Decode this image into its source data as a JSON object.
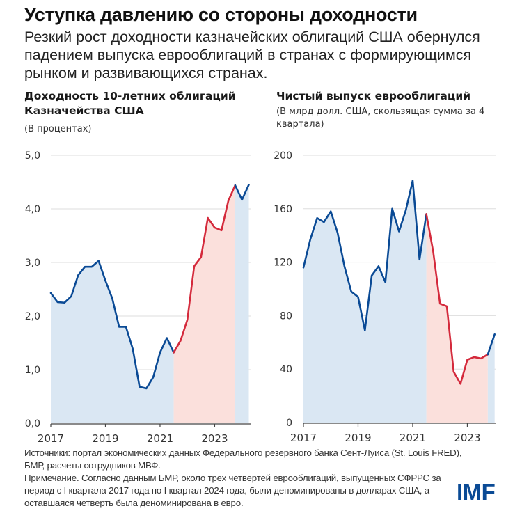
{
  "header": {
    "title": "Уступка давлению со стороны доходности",
    "subtitle": "Резкий рост доходности казначейских облигаций США обернулся падением выпуска еврооблигаций в странах с формирующимся рынком и развивающихся странах."
  },
  "colors": {
    "line_blue": "#0a4a95",
    "line_red": "#d42a3c",
    "fill_blue": "#dae7f3",
    "fill_red": "#fbe0dc",
    "grid": "#dddddd",
    "logo": "#0a4a95"
  },
  "chart_data": [
    {
      "type": "line",
      "title": "Доходность 10-летних облигаций Казначейства США",
      "units": "(В процентах)",
      "xlabel": "",
      "ylabel": "",
      "x_start": "2017 Q1",
      "x_frequency": "quarterly",
      "x_ticks": [
        "2017",
        "2019",
        "2021",
        "2023"
      ],
      "y_ticks": [
        "0,0",
        "1,0",
        "2,0",
        "3,0",
        "4,0",
        "5,0"
      ],
      "ylim": [
        0,
        5
      ],
      "grid": true,
      "highlight": {
        "start_index": 18,
        "end_index": 27,
        "label": "red period"
      },
      "series": [
        {
          "name": "10-year US Treasury yield",
          "values": [
            2.43,
            2.26,
            2.25,
            2.37,
            2.76,
            2.92,
            2.92,
            3.03,
            2.66,
            2.33,
            1.8,
            1.8,
            1.39,
            0.68,
            0.65,
            0.86,
            1.32,
            1.59,
            1.32,
            1.54,
            1.93,
            2.93,
            3.1,
            3.83,
            3.65,
            3.6,
            4.15,
            4.44,
            4.17,
            4.45
          ]
        }
      ]
    },
    {
      "type": "line",
      "title": "Чистый выпуск еврооблигаций",
      "units": "(В млрд долл. США, скользящая сумма за 4 квартала)",
      "xlabel": "",
      "ylabel": "",
      "x_start": "2017 Q1",
      "x_frequency": "quarterly",
      "x_ticks": [
        "2017",
        "2019",
        "2021",
        "2023"
      ],
      "y_ticks": [
        "0",
        "40",
        "80",
        "120",
        "160",
        "200"
      ],
      "ylim": [
        0,
        200
      ],
      "grid": true,
      "highlight": {
        "start_index": 18,
        "end_index": 27,
        "label": "red period"
      },
      "series": [
        {
          "name": "Net Eurobond issuance",
          "values": [
            116,
            137,
            153,
            150,
            158,
            142,
            117,
            98,
            94,
            69,
            110,
            117,
            105,
            160,
            143,
            159,
            181,
            122,
            156,
            128,
            89,
            87,
            38,
            29,
            47,
            49,
            48,
            51,
            66
          ]
        }
      ]
    }
  ],
  "footer": {
    "sources": "Источники: портал экономических данных Федерального резервного банка Сент-Луиса (St. Louis FRED), БМР, расчеты сотрудников МВФ.",
    "note": "Примечание. Согласно данным БМР, около трех четвертей еврооблигаций, выпущенных СФРРС за период с I квартала 2017 года по I квартал 2024 года, были деноминированы в долларах США, а оставшаяся четверть была деноминирована в евро."
  },
  "logo": {
    "text": "IMF"
  }
}
